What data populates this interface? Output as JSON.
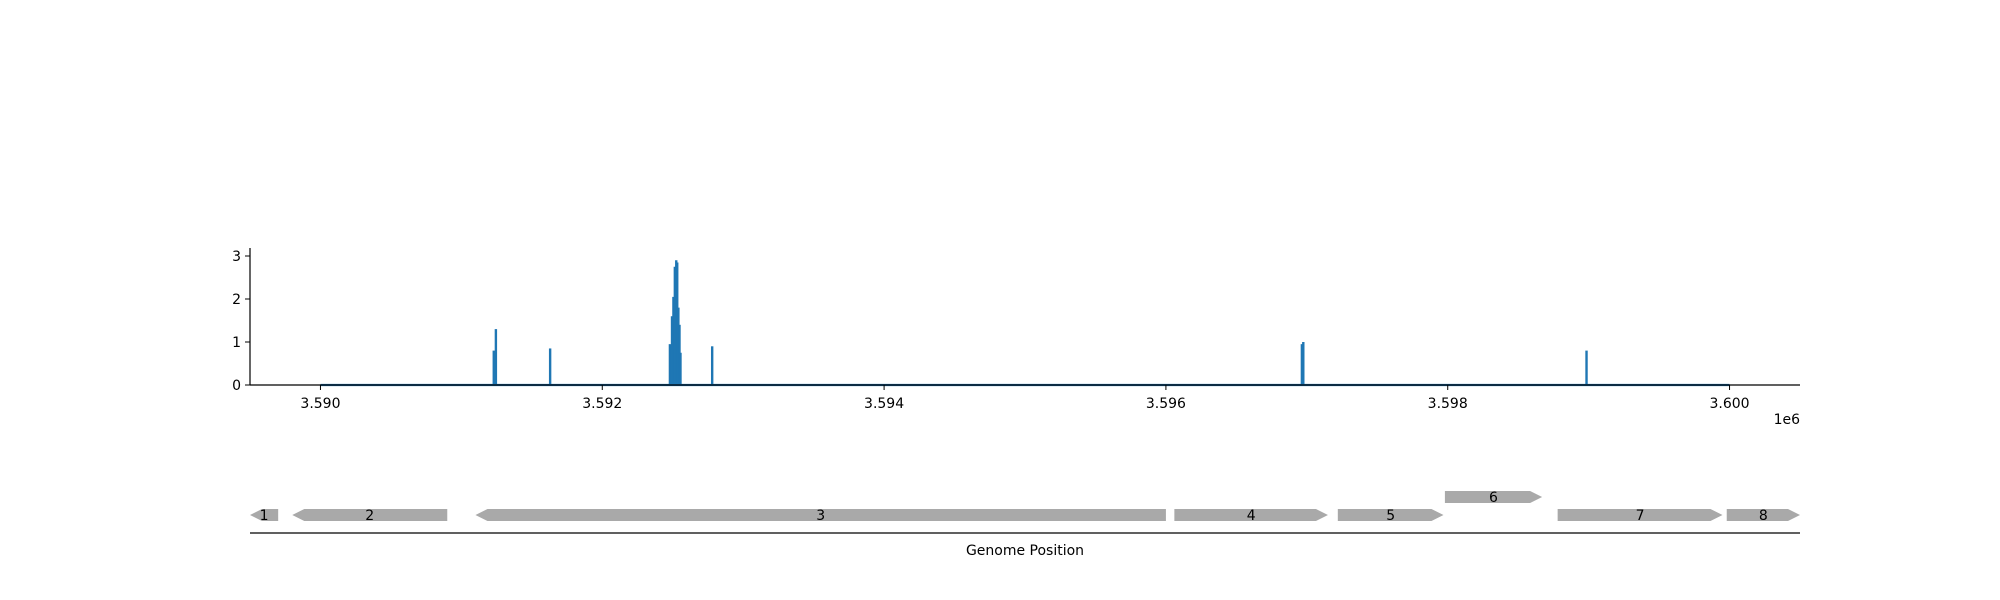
{
  "chart_data": [
    {
      "type": "line",
      "title": "",
      "xlabel": "",
      "ylabel": "",
      "x_offset_text": "1e6",
      "xlim": [
        3589500,
        3600500
      ],
      "ylim": [
        0,
        3.15
      ],
      "x_ticks": [
        3590000,
        3592000,
        3594000,
        3596000,
        3598000,
        3600000
      ],
      "x_tick_labels": [
        "3.590",
        "3.592",
        "3.594",
        "3.596",
        "3.598",
        "3.600"
      ],
      "y_ticks": [
        0,
        1,
        2,
        3
      ],
      "y_tick_labels": [
        "0",
        "1",
        "2",
        "3"
      ],
      "grid": false,
      "color": "#1f77b4",
      "baseline": {
        "x_start": 3590000,
        "x_end": 3600000,
        "y": 0
      },
      "peaks": [
        {
          "x": 3591230,
          "y": 0.8
        },
        {
          "x": 3591245,
          "y": 1.3
        },
        {
          "x": 3591630,
          "y": 0.85
        },
        {
          "x": 3592480,
          "y": 0.95
        },
        {
          "x": 3592495,
          "y": 1.6
        },
        {
          "x": 3592505,
          "y": 2.05
        },
        {
          "x": 3592515,
          "y": 2.75
        },
        {
          "x": 3592525,
          "y": 2.9
        },
        {
          "x": 3592532,
          "y": 2.85
        },
        {
          "x": 3592540,
          "y": 1.8
        },
        {
          "x": 3592548,
          "y": 1.4
        },
        {
          "x": 3592555,
          "y": 0.75
        },
        {
          "x": 3592780,
          "y": 0.9
        },
        {
          "x": 3596965,
          "y": 0.95
        },
        {
          "x": 3596975,
          "y": 1.0
        },
        {
          "x": 3598985,
          "y": 0.8
        }
      ]
    },
    {
      "type": "gene_track",
      "xlabel": "Genome Position",
      "xlim": [
        3589500,
        3600500
      ],
      "color": "#a9a9a9",
      "genes": [
        {
          "label": "1",
          "start": 3589500,
          "end": 3589700,
          "strand": "-",
          "row": 0
        },
        {
          "label": "2",
          "start": 3589800,
          "end": 3590900,
          "strand": "-",
          "row": 0
        },
        {
          "label": "3",
          "start": 3591100,
          "end": 3596000,
          "strand": "-",
          "row": 0
        },
        {
          "label": "4",
          "start": 3596060,
          "end": 3597150,
          "strand": "+",
          "row": 0
        },
        {
          "label": "5",
          "start": 3597220,
          "end": 3597970,
          "strand": "+",
          "row": 0
        },
        {
          "label": "6",
          "start": 3597980,
          "end": 3598670,
          "strand": "+",
          "row": 1
        },
        {
          "label": "7",
          "start": 3598780,
          "end": 3599950,
          "strand": "+",
          "row": 0
        },
        {
          "label": "8",
          "start": 3599980,
          "end": 3600500,
          "strand": "+",
          "row": 0
        }
      ]
    }
  ]
}
